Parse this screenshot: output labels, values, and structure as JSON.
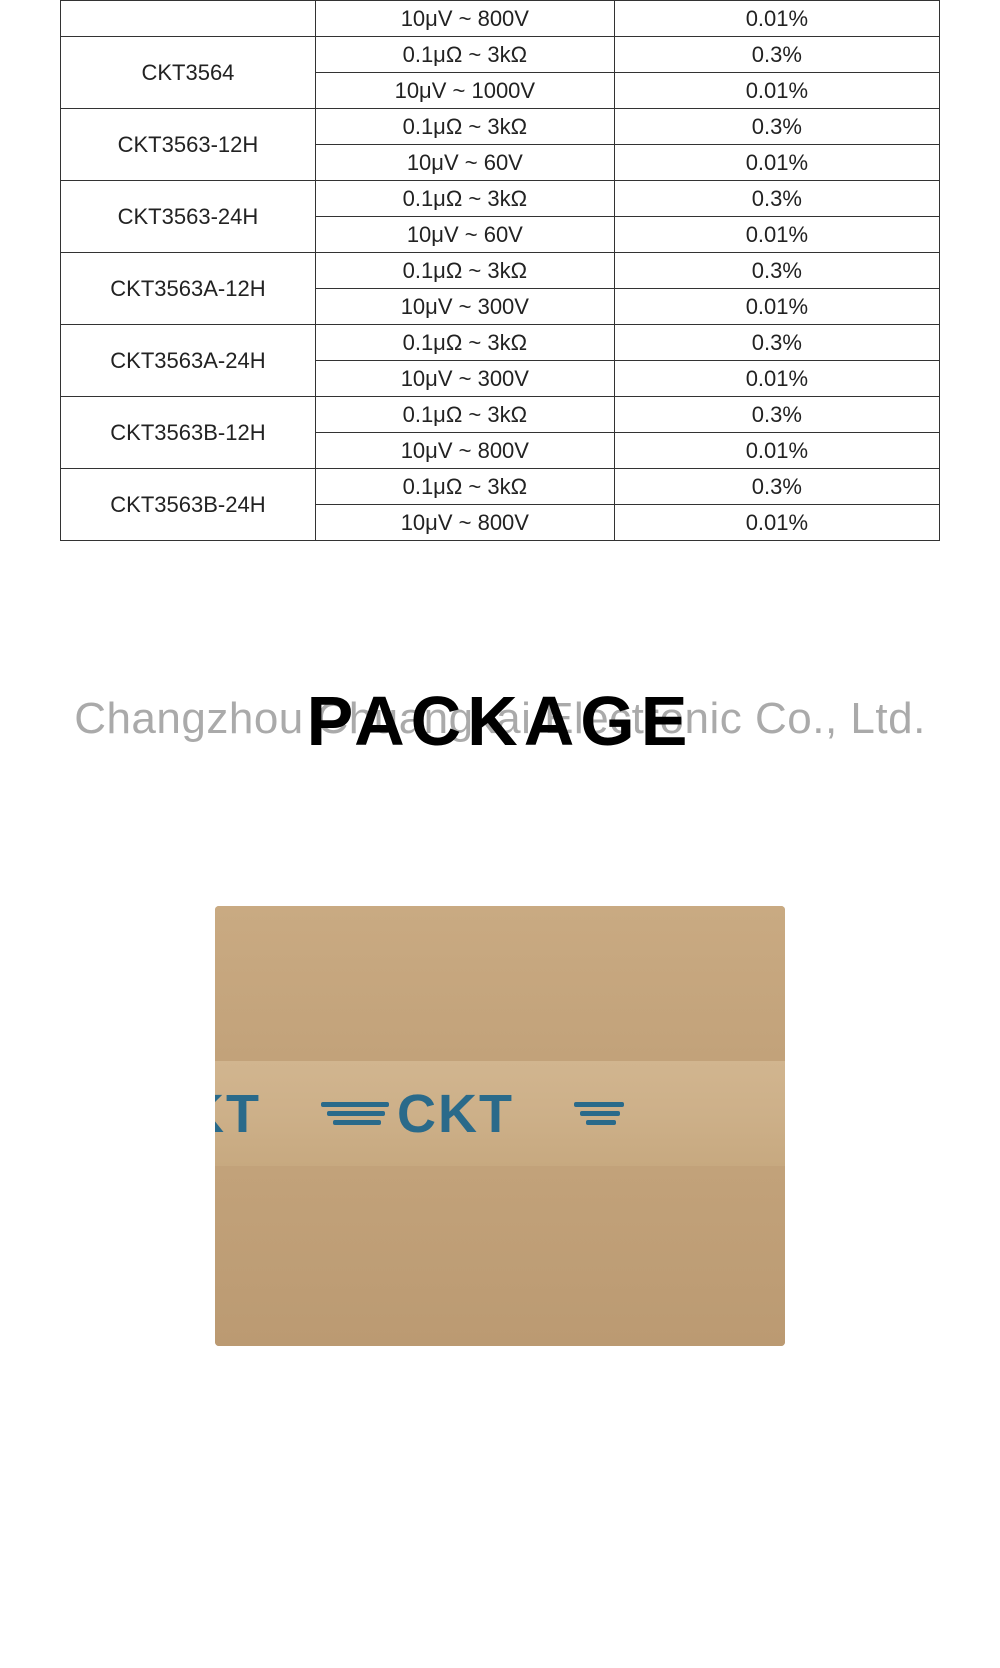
{
  "table": {
    "border_color": "#333333",
    "text_color": "#222222",
    "font_size": 22,
    "rows": [
      {
        "model": "",
        "range": "10μV ~ 800V",
        "accuracy": "0.01%"
      },
      {
        "model": "CKT3564",
        "range": "0.1μΩ ~ 3kΩ",
        "accuracy": "0.3%"
      },
      {
        "model": "",
        "range": "10μV ~ 1000V",
        "accuracy": "0.01%"
      },
      {
        "model": "CKT3563-12H",
        "range": "0.1μΩ ~ 3kΩ",
        "accuracy": "0.3%"
      },
      {
        "model": "",
        "range": "10μV ~ 60V",
        "accuracy": "0.01%"
      },
      {
        "model": "CKT3563-24H",
        "range": "0.1μΩ ~ 3kΩ",
        "accuracy": "0.3%"
      },
      {
        "model": "",
        "range": "10μV ~ 60V",
        "accuracy": "0.01%"
      },
      {
        "model": "CKT3563A-12H",
        "range": "0.1μΩ ~ 3kΩ",
        "accuracy": "0.3%"
      },
      {
        "model": "",
        "range": "10μV ~ 300V",
        "accuracy": "0.01%"
      },
      {
        "model": "CKT3563A-24H",
        "range": "0.1μΩ ~ 3kΩ",
        "accuracy": "0.3%"
      },
      {
        "model": "",
        "range": "10μV ~ 300V",
        "accuracy": "0.01%"
      },
      {
        "model": "CKT3563B-12H",
        "range": "0.1μΩ ~ 3kΩ",
        "accuracy": "0.3%"
      },
      {
        "model": "",
        "range": "10μV ~ 800V",
        "accuracy": "0.01%"
      },
      {
        "model": "CKT3563B-24H",
        "range": "0.1μΩ ~ 3kΩ",
        "accuracy": "0.3%"
      },
      {
        "model": "",
        "range": "10μV ~ 800V",
        "accuracy": "0.01%"
      }
    ],
    "merges": [
      {
        "start": 1,
        "span": 2
      },
      {
        "start": 3,
        "span": 2
      },
      {
        "start": 5,
        "span": 2
      },
      {
        "start": 7,
        "span": 2
      },
      {
        "start": 9,
        "span": 2
      },
      {
        "start": 11,
        "span": 2
      },
      {
        "start": 13,
        "span": 2
      }
    ]
  },
  "heading": {
    "title": "PACKAGE",
    "title_color": "#000000",
    "title_fontsize": 70,
    "watermark": "Changzhou Chuangkai Electronic Co., Ltd.",
    "watermark_color": "rgba(100,100,100,0.55)",
    "watermark_fontsize": 44
  },
  "package_box": {
    "background_color": "#c5a67e",
    "tape_color": "#cdb089",
    "logo_text": "CKT",
    "logo_color": "#2a6a8a",
    "partial_left": "KT"
  }
}
